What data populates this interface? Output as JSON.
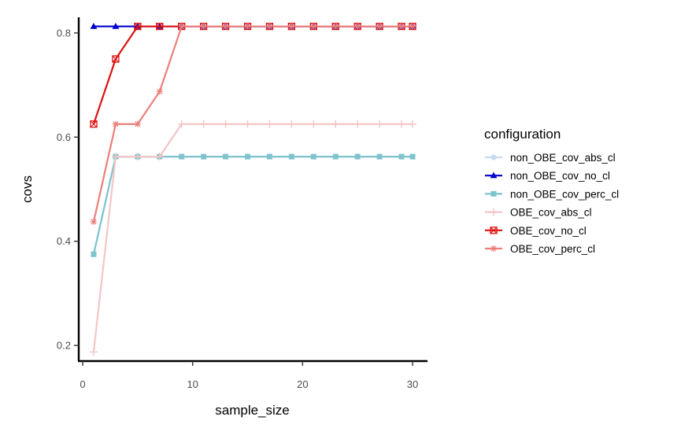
{
  "chart_data": {
    "type": "line",
    "title": "",
    "xlabel": "sample_size",
    "ylabel": "covs",
    "xlim": [
      0,
      31
    ],
    "ylim": [
      0.17,
      0.83
    ],
    "x_ticks": [
      0,
      10,
      20,
      30
    ],
    "y_ticks": [
      0.2,
      0.4,
      0.6,
      0.8
    ],
    "x_tick_labels": [
      "0",
      "10",
      "20",
      "30"
    ],
    "y_tick_labels": [
      "0.2",
      "0.4",
      "0.6",
      "0.8"
    ],
    "grid": false,
    "legend_position": "right",
    "legend_title": "configuration",
    "x": [
      1,
      3,
      5,
      7,
      9,
      11,
      13,
      15,
      17,
      19,
      21,
      23,
      25,
      27,
      29,
      30
    ],
    "series": [
      {
        "name": "non_OBE_cov_abs_cl",
        "color": "#c6dbef",
        "marker": "circle",
        "values": [
          0.375,
          0.5625,
          0.5625,
          0.5625,
          0.5625,
          0.5625,
          0.5625,
          0.5625,
          0.5625,
          0.5625,
          0.5625,
          0.5625,
          0.5625,
          0.5625,
          0.5625,
          0.5625
        ]
      },
      {
        "name": "non_OBE_cov_no_cl",
        "color": "#0000cd",
        "marker": "triangle",
        "values": [
          0.8125,
          0.8125,
          0.8125,
          0.8125,
          0.8125,
          0.8125,
          0.8125,
          0.8125,
          0.8125,
          0.8125,
          0.8125,
          0.8125,
          0.8125,
          0.8125,
          0.8125,
          0.8125
        ]
      },
      {
        "name": "non_OBE_cov_perc_cl",
        "color": "#7fc4cd",
        "marker": "square",
        "values": [
          0.375,
          0.5625,
          0.5625,
          0.5625,
          0.5625,
          0.5625,
          0.5625,
          0.5625,
          0.5625,
          0.5625,
          0.5625,
          0.5625,
          0.5625,
          0.5625,
          0.5625,
          0.5625
        ]
      },
      {
        "name": "OBE_cov_abs_cl",
        "color": "#f2c6c6",
        "marker": "plus",
        "values": [
          0.1875,
          0.5625,
          0.5625,
          0.5625,
          0.625,
          0.625,
          0.625,
          0.625,
          0.625,
          0.625,
          0.625,
          0.625,
          0.625,
          0.625,
          0.625,
          0.625
        ]
      },
      {
        "name": "OBE_cov_no_cl",
        "color": "#dd1111",
        "marker": "boxcross",
        "values": [
          0.625,
          0.75,
          0.8125,
          0.8125,
          0.8125,
          0.8125,
          0.8125,
          0.8125,
          0.8125,
          0.8125,
          0.8125,
          0.8125,
          0.8125,
          0.8125,
          0.8125,
          0.8125
        ]
      },
      {
        "name": "OBE_cov_perc_cl",
        "color": "#ec7f7a",
        "marker": "asterisk",
        "values": [
          0.4375,
          0.625,
          0.625,
          0.6875,
          0.8125,
          0.8125,
          0.8125,
          0.8125,
          0.8125,
          0.8125,
          0.8125,
          0.8125,
          0.8125,
          0.8125,
          0.8125,
          0.8125
        ]
      }
    ]
  }
}
